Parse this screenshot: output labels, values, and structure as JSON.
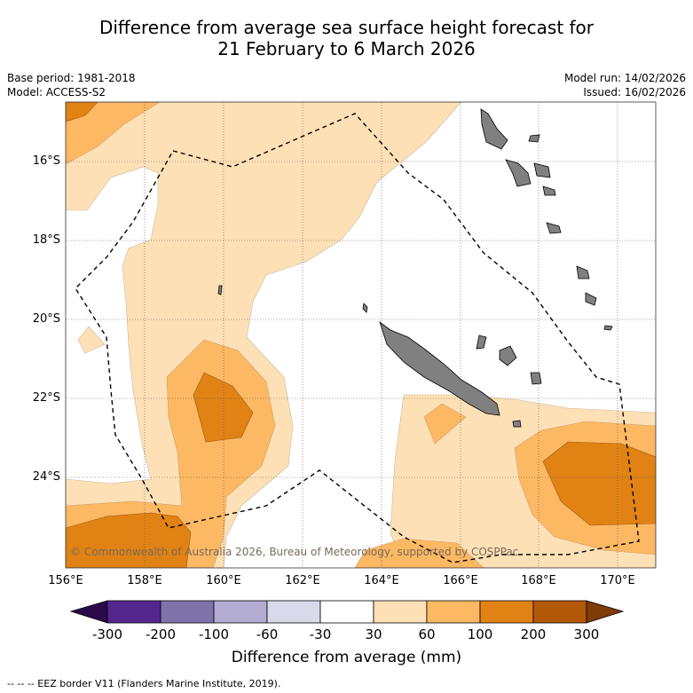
{
  "title_line1": "Difference from average sea surface height forecast for",
  "title_line2": "21 February to 6 March 2026",
  "base_period": "Base period: 1981-2018",
  "model": "Model: ACCESS-S2",
  "model_run": "Model run: 14/02/2026",
  "issued": "Issued: 16/02/2026",
  "copyright": "© Commonwealth of Australia 2026, Bureau of Meteorology, supported by COSPPac",
  "lat_ticks": [
    "16°S",
    "18°S",
    "20°S",
    "22°S",
    "24°S"
  ],
  "lon_ticks": [
    "156°E",
    "158°E",
    "160°E",
    "162°E",
    "164°E",
    "166°E",
    "168°E",
    "170°E"
  ],
  "colorbar_ticks": [
    "-300",
    "-200",
    "-100",
    "-60",
    "-30",
    "30",
    "60",
    "100",
    "200",
    "300"
  ],
  "colorbar_colors": [
    "#2a0a4a",
    "#54278f",
    "#8073ac",
    "#b2abd2",
    "#d8daeb",
    "#ffffff",
    "#fee0b6",
    "#fdb863",
    "#e08214",
    "#b35806",
    "#7f3b08"
  ],
  "colorbar_title": "Difference from average (mm)",
  "footer": "--  --  -- EEZ border V11 (Flanders Marine Institute, 2019).",
  "colors": {
    "level_30_60": "#fee0b6",
    "level_60_100": "#fdb863",
    "level_100_200": "#e08214",
    "land": "#808080"
  }
}
